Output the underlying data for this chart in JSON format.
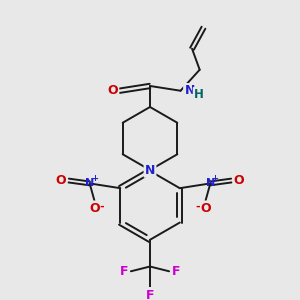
{
  "background_color": "#e8e8e8",
  "bond_color": "#1a1a1a",
  "atom_colors": {
    "O": "#cc0000",
    "N": "#2222cc",
    "H": "#006666",
    "F": "#cc00cc",
    "C": "#1a1a1a"
  },
  "figsize": [
    3.0,
    3.0
  ],
  "dpi": 100
}
